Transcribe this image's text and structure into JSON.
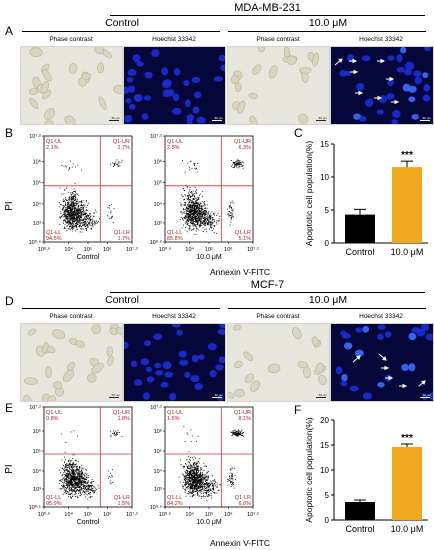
{
  "top": {
    "cell_line": "MDA-MB-231",
    "control": "Control",
    "treatment": "10.0 μM",
    "phase": "Phase contrast",
    "hoechst": "Hoechst 33342"
  },
  "bottom": {
    "cell_line": "MCF-7",
    "control": "Control",
    "treatment": "10.0 μM",
    "phase": "Phase contrast",
    "hoechst": "Hoechst 33342"
  },
  "panel_letters": [
    "A",
    "B",
    "C",
    "D",
    "E",
    "F"
  ],
  "scale_bar": "50 μm",
  "flow": {
    "y_label": "PI",
    "x_label": "Annexin V-FITC",
    "x_ticks": [
      "10⁰·⁶",
      "10⁴",
      "10⁵",
      "10⁶",
      "10⁷·²"
    ],
    "y_ticks": [
      "10⁰·⁶",
      "10³",
      "10⁴",
      "10⁵",
      "10⁶",
      "10⁷·²"
    ],
    "plots": {
      "b_control": {
        "caption": "Control",
        "ul": "Q1-UL",
        "ul_v": "2.1%",
        "ur": "Q1-UR",
        "ur_v": "1.7%",
        "ll": "Q1-LL",
        "ll_v": "94.5%",
        "lr": "Q1-LR",
        "lr_v": "1.7%"
      },
      "b_treat": {
        "caption": "10.0 μM",
        "ul": "Q1-UL",
        "ul_v": "2.8%",
        "ur": "Q1-UR",
        "ur_v": "6.3%",
        "ll": "Q1-LL",
        "ll_v": "85.8%",
        "lr": "Q1-LR",
        "lr_v": "5.1%"
      },
      "e_control": {
        "caption": "Control",
        "ul": "Q1-UL",
        "ul_v": "0.8%",
        "ur": "Q1-UR",
        "ur_v": "1.8%",
        "ll": "Q1-LL",
        "ll_v": "95.9%",
        "lr": "Q1-LR",
        "lr_v": "1.5%"
      },
      "e_treat": {
        "caption": "10.0 μM",
        "ul": "Q1-UL",
        "ul_v": "1.5%",
        "ur": "Q1-UR",
        "ur_v": "8.1%",
        "ll": "Q1-LL",
        "ll_v": "84.2%",
        "lr": "Q1-LR",
        "lr_v": "6.0%"
      }
    }
  },
  "chart_data": [
    {
      "type": "bar",
      "panel": "C",
      "categories": [
        "Control",
        "10.0 μM"
      ],
      "values": [
        4.3,
        11.5
      ],
      "errors": [
        0.8,
        0.9
      ],
      "colors": [
        "#000000",
        "#f0a81e"
      ],
      "ylabel": "Apoptotic cell population(%)",
      "ylim": [
        0,
        15
      ],
      "yticks": [
        0,
        5,
        10,
        15
      ],
      "significance": "***"
    },
    {
      "type": "bar",
      "panel": "F",
      "categories": [
        "Control",
        "10.0 μM"
      ],
      "values": [
        3.6,
        14.6
      ],
      "errors": [
        0.4,
        0.6
      ],
      "colors": [
        "#000000",
        "#f0a81e"
      ],
      "ylabel": "Apoptotic cell population(%)",
      "ylim": [
        0,
        20
      ],
      "yticks": [
        0,
        5,
        10,
        15,
        20
      ],
      "significance": "***"
    }
  ]
}
